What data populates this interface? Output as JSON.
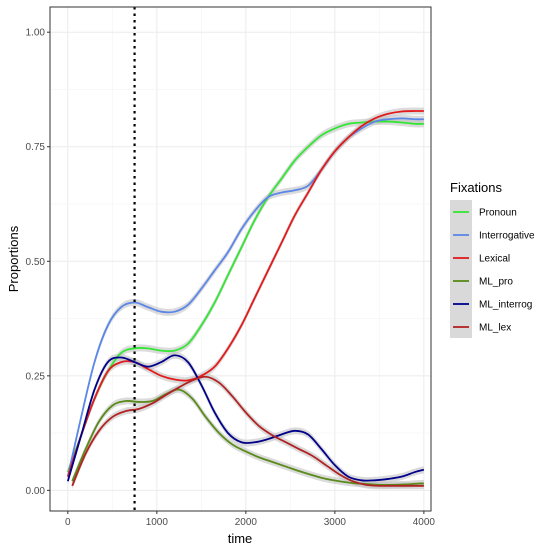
{
  "chart_data": {
    "type": "line",
    "xlabel": "time",
    "ylabel": "Proportions",
    "xlim": [
      -200,
      4080
    ],
    "ylim": [
      -0.045,
      1.055
    ],
    "x_ticks": [
      0,
      1000,
      2000,
      3000,
      4000
    ],
    "x_tick_labels": [
      "0",
      "1000",
      "2000",
      "3000",
      "4000"
    ],
    "y_ticks": [
      0,
      0.25,
      0.5,
      0.75,
      1.0
    ],
    "y_tick_labels": [
      "0.00",
      "0.25",
      "0.50",
      "0.75",
      "1.00"
    ],
    "grid": true,
    "vline_x": 750,
    "legend": {
      "title": "Fixations",
      "position": "right"
    },
    "series": [
      {
        "name": "Pronoun",
        "color": "#33e633",
        "x": [
          0,
          150,
          300,
          450,
          600,
          750,
          900,
          1050,
          1200,
          1350,
          1500,
          1650,
          1800,
          1950,
          2100,
          2250,
          2400,
          2550,
          2700,
          2850,
          3000,
          3150,
          3300,
          3450,
          3600,
          3750,
          3900,
          4000
        ],
        "y": [
          0.04,
          0.12,
          0.2,
          0.26,
          0.3,
          0.31,
          0.31,
          0.305,
          0.305,
          0.32,
          0.36,
          0.41,
          0.47,
          0.53,
          0.59,
          0.64,
          0.68,
          0.72,
          0.75,
          0.775,
          0.79,
          0.8,
          0.803,
          0.805,
          0.805,
          0.803,
          0.8,
          0.8
        ]
      },
      {
        "name": "Interrogative",
        "color": "#5b87e8",
        "x": [
          0,
          150,
          300,
          450,
          600,
          750,
          900,
          1050,
          1200,
          1350,
          1500,
          1650,
          1800,
          1950,
          2100,
          2250,
          2400,
          2550,
          2700,
          2850,
          3000,
          3150,
          3300,
          3450,
          3600,
          3750,
          3900,
          4000
        ],
        "y": [
          0.03,
          0.16,
          0.28,
          0.36,
          0.4,
          0.41,
          0.4,
          0.39,
          0.39,
          0.405,
          0.44,
          0.48,
          0.52,
          0.57,
          0.61,
          0.64,
          0.65,
          0.655,
          0.665,
          0.7,
          0.74,
          0.77,
          0.79,
          0.805,
          0.81,
          0.812,
          0.81,
          0.81
        ]
      },
      {
        "name": "Lexical",
        "color": "#e31a1c",
        "x": [
          0,
          150,
          300,
          450,
          600,
          750,
          900,
          1050,
          1200,
          1350,
          1500,
          1650,
          1800,
          1950,
          2100,
          2250,
          2400,
          2550,
          2700,
          2850,
          3000,
          3150,
          3300,
          3450,
          3600,
          3750,
          3900,
          4000
        ],
        "y": [
          0.03,
          0.12,
          0.2,
          0.26,
          0.28,
          0.28,
          0.265,
          0.25,
          0.242,
          0.24,
          0.25,
          0.27,
          0.31,
          0.36,
          0.42,
          0.48,
          0.54,
          0.6,
          0.65,
          0.7,
          0.74,
          0.77,
          0.795,
          0.812,
          0.822,
          0.827,
          0.828,
          0.828
        ]
      },
      {
        "name": "ML_pro",
        "color": "#5a8a1a",
        "x": [
          50,
          200,
          350,
          500,
          650,
          800,
          950,
          1100,
          1250,
          1400,
          1550,
          1700,
          1850,
          2000,
          2150,
          2300,
          2450,
          2600,
          2750,
          2900,
          3050,
          3200,
          3350,
          3500,
          3650,
          3800,
          3950,
          4000
        ],
        "y": [
          0.02,
          0.09,
          0.15,
          0.185,
          0.195,
          0.193,
          0.195,
          0.21,
          0.22,
          0.2,
          0.16,
          0.125,
          0.1,
          0.085,
          0.072,
          0.062,
          0.052,
          0.042,
          0.033,
          0.025,
          0.02,
          0.016,
          0.014,
          0.012,
          0.012,
          0.013,
          0.015,
          0.015
        ]
      },
      {
        "name": "ML_interrog",
        "color": "#00008b",
        "x": [
          0,
          150,
          300,
          450,
          600,
          750,
          900,
          1050,
          1200,
          1350,
          1500,
          1650,
          1800,
          1950,
          2100,
          2250,
          2400,
          2550,
          2700,
          2850,
          3000,
          3150,
          3300,
          3450,
          3600,
          3750,
          3900,
          4000
        ],
        "y": [
          0.02,
          0.12,
          0.22,
          0.28,
          0.29,
          0.28,
          0.27,
          0.28,
          0.295,
          0.28,
          0.23,
          0.17,
          0.125,
          0.105,
          0.105,
          0.112,
          0.122,
          0.13,
          0.122,
          0.09,
          0.055,
          0.03,
          0.022,
          0.022,
          0.025,
          0.03,
          0.04,
          0.045
        ]
      },
      {
        "name": "ML_lex",
        "color": "#b22222",
        "x": [
          50,
          200,
          350,
          500,
          650,
          800,
          950,
          1100,
          1250,
          1400,
          1550,
          1700,
          1850,
          2000,
          2150,
          2300,
          2450,
          2600,
          2750,
          2900,
          3050,
          3200,
          3350,
          3500,
          3650,
          3800,
          3950,
          4000
        ],
        "y": [
          0.01,
          0.08,
          0.13,
          0.16,
          0.173,
          0.178,
          0.19,
          0.208,
          0.225,
          0.24,
          0.248,
          0.235,
          0.205,
          0.17,
          0.14,
          0.12,
          0.105,
          0.09,
          0.075,
          0.055,
          0.035,
          0.02,
          0.012,
          0.01,
          0.01,
          0.01,
          0.01,
          0.01
        ]
      }
    ]
  }
}
